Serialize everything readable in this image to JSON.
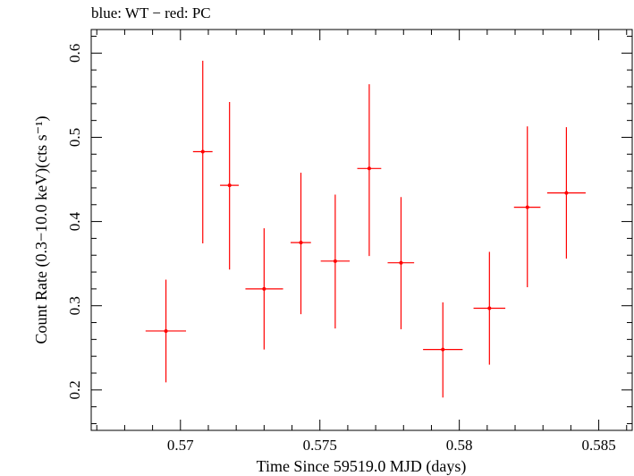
{
  "chart_data": {
    "type": "scatter",
    "title": "blue: WT − red: PC",
    "xlabel": "Time Since 59519.0 MJD (days)",
    "ylabel": "Count Rate (0.3−10.0 keV)(cts s⁻¹)",
    "xlim": [
      0.5668,
      0.5862
    ],
    "ylim": [
      0.152,
      0.628
    ],
    "xticks": [
      0.57,
      0.575,
      0.58,
      0.585
    ],
    "xtick_labels": [
      "0.57",
      "0.575",
      "0.58",
      "0.585"
    ],
    "yticks": [
      0.2,
      0.3,
      0.4,
      0.5,
      0.6
    ],
    "ytick_labels": [
      "0.2",
      "0.3",
      "0.4",
      "0.5",
      "0.6"
    ],
    "grid": false,
    "series": [
      {
        "color": "#ff0000",
        "points": [
          {
            "x": 0.56948,
            "y": 0.27,
            "xlo": 0.56875,
            "xhi": 0.5702,
            "ylo": 0.209,
            "yhi": 0.331
          },
          {
            "x": 0.5708,
            "y": 0.483,
            "xlo": 0.57045,
            "xhi": 0.57115,
            "ylo": 0.374,
            "yhi": 0.591
          },
          {
            "x": 0.57176,
            "y": 0.443,
            "xlo": 0.57142,
            "xhi": 0.57209,
            "ylo": 0.343,
            "yhi": 0.542
          },
          {
            "x": 0.573,
            "y": 0.32,
            "xlo": 0.57233,
            "xhi": 0.57368,
            "ylo": 0.248,
            "yhi": 0.392
          },
          {
            "x": 0.57432,
            "y": 0.375,
            "xlo": 0.57395,
            "xhi": 0.57468,
            "ylo": 0.29,
            "yhi": 0.458
          },
          {
            "x": 0.57555,
            "y": 0.353,
            "xlo": 0.57503,
            "xhi": 0.57607,
            "ylo": 0.273,
            "yhi": 0.432
          },
          {
            "x": 0.57677,
            "y": 0.463,
            "xlo": 0.57634,
            "xhi": 0.5772,
            "ylo": 0.359,
            "yhi": 0.563
          },
          {
            "x": 0.57791,
            "y": 0.351,
            "xlo": 0.57743,
            "xhi": 0.57838,
            "ylo": 0.272,
            "yhi": 0.429
          },
          {
            "x": 0.57941,
            "y": 0.248,
            "xlo": 0.5787,
            "xhi": 0.58012,
            "ylo": 0.191,
            "yhi": 0.304
          },
          {
            "x": 0.58108,
            "y": 0.297,
            "xlo": 0.58051,
            "xhi": 0.58165,
            "ylo": 0.23,
            "yhi": 0.364
          },
          {
            "x": 0.58244,
            "y": 0.417,
            "xlo": 0.58196,
            "xhi": 0.58291,
            "ylo": 0.322,
            "yhi": 0.513
          },
          {
            "x": 0.58384,
            "y": 0.434,
            "xlo": 0.58315,
            "xhi": 0.58453,
            "ylo": 0.356,
            "yhi": 0.512
          }
        ]
      }
    ]
  }
}
